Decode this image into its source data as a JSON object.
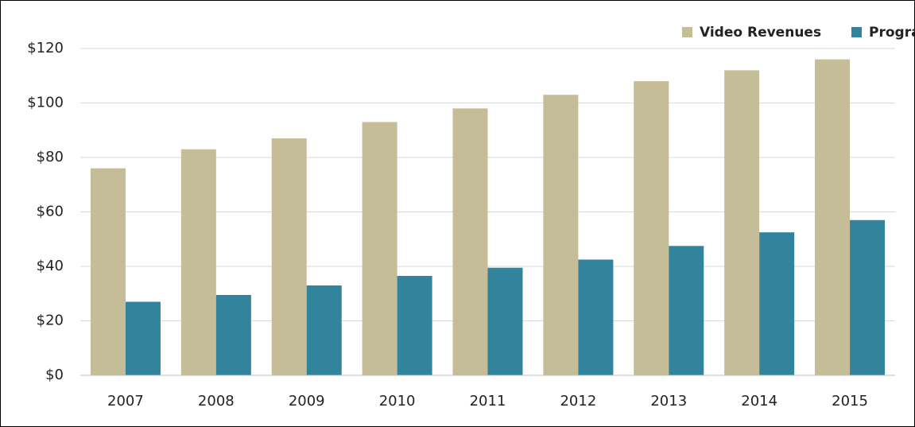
{
  "chart_data": {
    "type": "bar",
    "categories": [
      "2007",
      "2008",
      "2009",
      "2010",
      "2011",
      "2012",
      "2013",
      "2014",
      "2015"
    ],
    "series": [
      {
        "name": "Video Revenues",
        "color": "#c4bd97",
        "values": [
          76,
          83,
          87,
          93,
          98,
          103,
          108,
          112,
          116
        ]
      },
      {
        "name": "Programming Fees",
        "color": "#31849b",
        "values": [
          27,
          29.5,
          33,
          36.5,
          39.5,
          42.5,
          47.5,
          52.5,
          57
        ]
      }
    ],
    "ylim": [
      0,
      120
    ],
    "yticks": [
      {
        "value": 0,
        "label": "$0"
      },
      {
        "value": 20,
        "label": "$20"
      },
      {
        "value": 40,
        "label": "$40"
      },
      {
        "value": 60,
        "label": "$60"
      },
      {
        "value": 80,
        "label": "$80"
      },
      {
        "value": 100,
        "label": "$100"
      },
      {
        "value": 120,
        "label": "$120"
      }
    ],
    "grid": true,
    "legend": "upper right"
  }
}
